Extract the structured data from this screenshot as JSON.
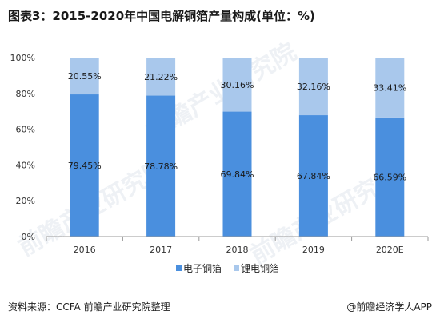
{
  "page": {
    "title": "图表3：2015-2020年中国电解铜箔产量构成(单位：%)",
    "source": "资料来源：CCFA 前瞻产业研究院整理",
    "brand": "@前瞻经济学人APP",
    "watermark": "前瞻产业研究院"
  },
  "chart_data": {
    "type": "bar",
    "stacked": true,
    "categories": [
      "2016",
      "2017",
      "2018",
      "2019",
      "2020E"
    ],
    "series": [
      {
        "name": "电子铜箔",
        "color": "#4a8fde",
        "values": [
          79.45,
          78.78,
          69.84,
          67.84,
          66.59
        ],
        "labels": [
          "79.45%",
          "78.78%",
          "69.84%",
          "67.84%",
          "66.59%"
        ]
      },
      {
        "name": "锂电铜箔",
        "color": "#a9c8ec",
        "values": [
          20.55,
          21.22,
          30.16,
          32.16,
          33.41
        ],
        "labels": [
          "20.55%",
          "21.22%",
          "30.16%",
          "32.16%",
          "33.41%"
        ]
      }
    ],
    "ylim": [
      0,
      100
    ],
    "yticks": [
      "0%",
      "20%",
      "40%",
      "60%",
      "80%",
      "100%"
    ],
    "legend_position": "bottom",
    "grid": false
  }
}
